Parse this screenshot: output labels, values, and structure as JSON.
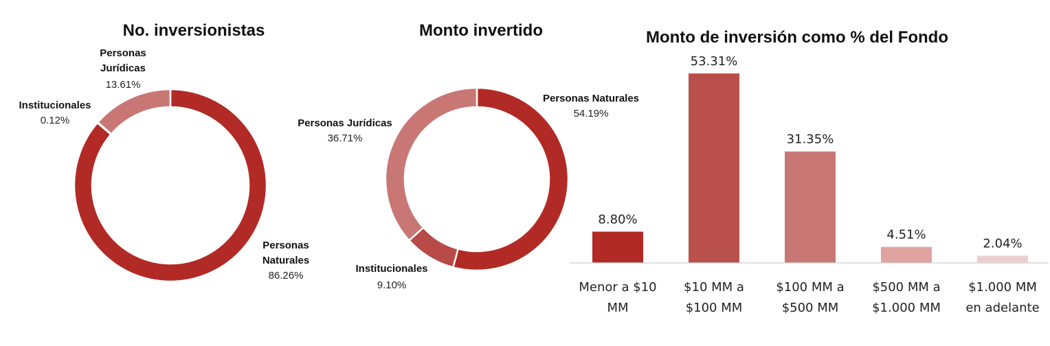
{
  "chart_data": [
    {
      "type": "pie",
      "title": "No. inversionistas",
      "slices": [
        {
          "name": [
            "Personas",
            "Naturales"
          ],
          "value": 86.26,
          "label": "86.26%",
          "color": "#b22a25"
        },
        {
          "name": [
            "Institucionales"
          ],
          "value": 0.12,
          "label": "0.12%",
          "color": "#b84a47"
        },
        {
          "name": [
            "Personas",
            "Jurídicas"
          ],
          "value": 13.61,
          "label": "13.61%",
          "color": "#c97774"
        }
      ]
    },
    {
      "type": "pie",
      "title": "Monto invertido",
      "slices": [
        {
          "name": [
            "Personas Naturales"
          ],
          "value": 54.19,
          "label": "54.19%",
          "color": "#b22a25"
        },
        {
          "name": [
            "Institucionales"
          ],
          "value": 9.1,
          "label": "9.10%",
          "color": "#b84a47"
        },
        {
          "name": [
            "Personas Jurídicas"
          ],
          "value": 36.71,
          "label": "36.71%",
          "color": "#c97774"
        }
      ]
    },
    {
      "type": "bar",
      "title": "Monto de inversión como % del Fondo",
      "categories": [
        [
          "Menor a $10",
          "MM"
        ],
        [
          "$10 MM a",
          "$100 MM"
        ],
        [
          "$100 MM a",
          "$500 MM"
        ],
        [
          "$500 MM a",
          "$1.000 MM"
        ],
        [
          "$1.000 MM",
          "en adelante"
        ]
      ],
      "values": [
        8.8,
        53.31,
        31.35,
        4.51,
        2.04
      ],
      "labels": [
        "8.80%",
        "53.31%",
        "31.35%",
        "4.51%",
        "2.04%"
      ],
      "colors": [
        "#b22a25",
        "#b9504c",
        "#c97774",
        "#dfa3a1",
        "#ebcfce"
      ],
      "ylim": [
        0,
        53.31
      ]
    }
  ]
}
